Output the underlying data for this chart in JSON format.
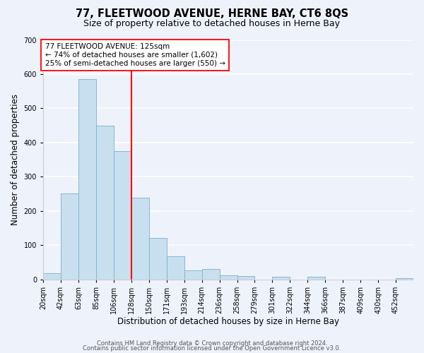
{
  "title": "77, FLEETWOOD AVENUE, HERNE BAY, CT6 8QS",
  "subtitle": "Size of property relative to detached houses in Herne Bay",
  "xlabel": "Distribution of detached houses by size in Herne Bay",
  "ylabel": "Number of detached properties",
  "bin_labels": [
    "20sqm",
    "42sqm",
    "63sqm",
    "85sqm",
    "106sqm",
    "128sqm",
    "150sqm",
    "171sqm",
    "193sqm",
    "214sqm",
    "236sqm",
    "258sqm",
    "279sqm",
    "301sqm",
    "322sqm",
    "344sqm",
    "366sqm",
    "387sqm",
    "409sqm",
    "430sqm",
    "452sqm"
  ],
  "num_bins": 21,
  "bar_heights": [
    18,
    250,
    585,
    450,
    375,
    238,
    120,
    68,
    25,
    30,
    12,
    10,
    0,
    8,
    0,
    8,
    0,
    0,
    0,
    0,
    4
  ],
  "bar_color": "#c8dff0",
  "bar_edge_color": "#7ab0cc",
  "vline_label_index": 5,
  "vline_color": "red",
  "annotation_text": "77 FLEETWOOD AVENUE: 125sqm\n← 74% of detached houses are smaller (1,602)\n25% of semi-detached houses are larger (550) →",
  "annotation_box_color": "white",
  "annotation_box_edge_color": "red",
  "ylim": [
    0,
    700
  ],
  "yticks": [
    0,
    100,
    200,
    300,
    400,
    500,
    600,
    700
  ],
  "footer1": "Contains HM Land Registry data © Crown copyright and database right 2024.",
  "footer2": "Contains public sector information licensed under the Open Government Licence v3.0.",
  "bg_color": "#eef2fb",
  "grid_color": "white",
  "title_fontsize": 10.5,
  "subtitle_fontsize": 9,
  "axis_label_fontsize": 8.5,
  "tick_fontsize": 7,
  "footer_fontsize": 6,
  "annot_fontsize": 7.5
}
